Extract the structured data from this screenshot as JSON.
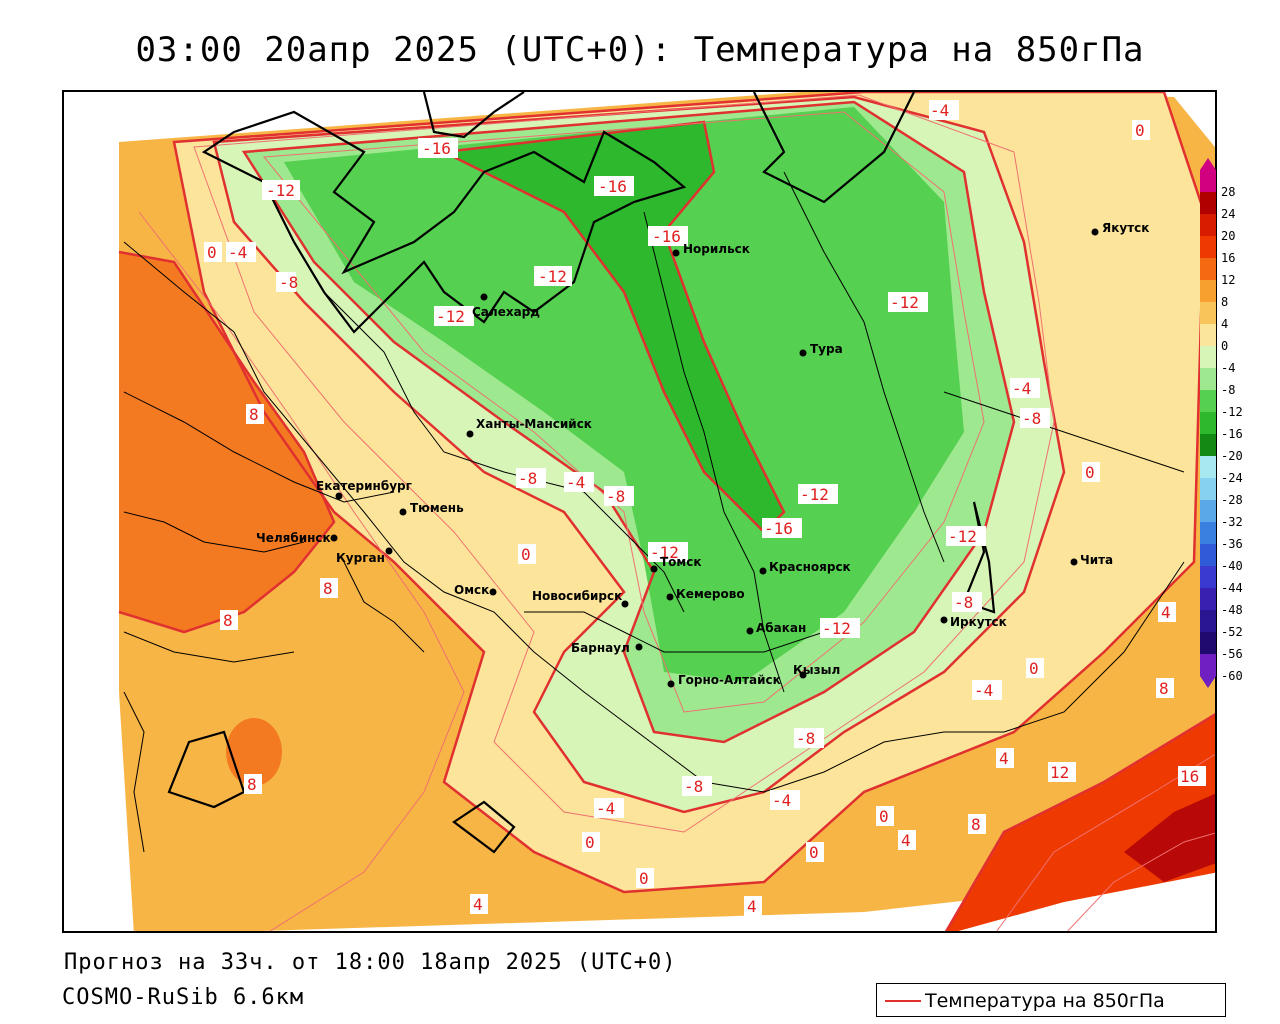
{
  "title": "03:00 20апр 2025 (UTC+0): Температура на 850гПа",
  "footer": {
    "forecast": "Прогноз на 33ч. от 18:00 18апр 2025 (UTC+0)",
    "model": "COSMO-RuSib 6.6км"
  },
  "legend": {
    "label": "Температура на 850гПа",
    "color": "#e03030"
  },
  "colorbar": {
    "labels": [
      "28",
      "24",
      "20",
      "16",
      "12",
      "8",
      "4",
      "0",
      "-4",
      "-8",
      "-12",
      "-16",
      "-20",
      "-24",
      "-28",
      "-32",
      "-36",
      "-40",
      "-44",
      "-48",
      "-52",
      "-56",
      "-60"
    ],
    "colors": [
      "#d00080",
      "#b00000",
      "#d81c00",
      "#ee3a00",
      "#f46a10",
      "#f7a030",
      "#f9c55a",
      "#fbe59a",
      "#d8f5b8",
      "#9ee890",
      "#55d050",
      "#2eb82e",
      "#148a14",
      "#a8e8f0",
      "#86d0f0",
      "#5aa8e8",
      "#3a80e0",
      "#2f5ad8",
      "#3a3ad0",
      "#3a20b0",
      "#2a1690",
      "#200a70",
      "#7020c0"
    ]
  },
  "cities": [
    {
      "name": "Якутск"
    },
    {
      "name": "Норильск"
    },
    {
      "name": "Салехард"
    },
    {
      "name": "Тура"
    },
    {
      "name": "Ханты-Мансийск"
    },
    {
      "name": "Екатеринбург"
    },
    {
      "name": "Тюмень"
    },
    {
      "name": "Челябинск"
    },
    {
      "name": "Курган"
    },
    {
      "name": "Омск"
    },
    {
      "name": "Новосибирск"
    },
    {
      "name": "Томск"
    },
    {
      "name": "Кемерово"
    },
    {
      "name": "Красноярск"
    },
    {
      "name": "Абакан"
    },
    {
      "name": "Барнаул"
    },
    {
      "name": "Горно-Алтайск"
    },
    {
      "name": "Кызыл"
    },
    {
      "name": "Иркутск"
    },
    {
      "name": "Чита"
    }
  ],
  "isotherm_labels": [
    "-16",
    "-12",
    "-12",
    "-16",
    "-16",
    "-12",
    "-4",
    "0",
    "0",
    "-4",
    "-8",
    "-12",
    "-8",
    "-4",
    "-8",
    "-12",
    "-16",
    "-12",
    "-8",
    "-4",
    "-8",
    "-12",
    "-12",
    "0",
    "8",
    "8",
    "8",
    "8",
    "0",
    "-4",
    "-8",
    "0",
    "4",
    "-4",
    "-8",
    "-4",
    "0",
    "4",
    "8",
    "12",
    "16",
    "0",
    "4",
    "0",
    "4",
    "4",
    "8",
    "0"
  ]
}
